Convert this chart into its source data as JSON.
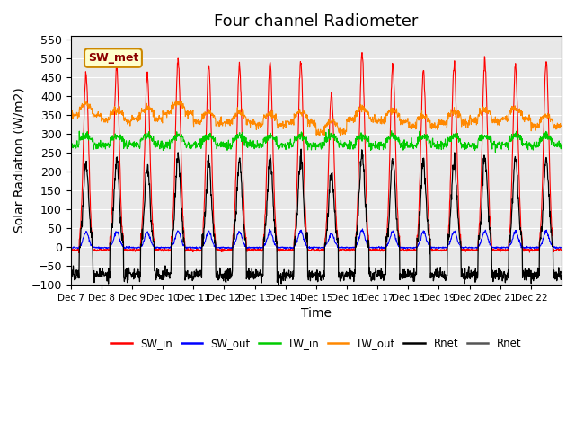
{
  "title": "Four channel Radiometer",
  "ylabel": "Solar Radiation (W/m2)",
  "xlabel": "Time",
  "ylim": [
    -100,
    560
  ],
  "yticks": [
    -100,
    -50,
    0,
    50,
    100,
    150,
    200,
    250,
    300,
    350,
    400,
    450,
    500,
    550
  ],
  "x_labels": [
    "Dec 7",
    "Dec 8",
    "Dec 9",
    "Dec 10",
    "Dec 11",
    "Dec 12",
    "Dec 13",
    "Dec 14",
    "Dec 15",
    "Dec 16",
    "Dec 17",
    "Dec 18",
    "Dec 19",
    "Dec 20",
    "Dec 21",
    "Dec 22"
  ],
  "n_days": 16,
  "legend_labels": [
    "SW_in",
    "SW_out",
    "LW_in",
    "LW_out",
    "Rnet",
    "Rnet"
  ],
  "legend_colors": [
    "#ff0000",
    "#0000ff",
    "#00cc00",
    "#ff8800",
    "#000000",
    "#555555"
  ],
  "sw_met_label": "SW_met",
  "background_color": "#e8e8e8",
  "grid_color": "#ffffff",
  "title_fontsize": 13,
  "axis_fontsize": 10,
  "day_peaks_sw": [
    460,
    480,
    455,
    495,
    480,
    480,
    490,
    490,
    410,
    515,
    485,
    465,
    480,
    495,
    480,
    490
  ],
  "day_peaks_lw_out": [
    375,
    360,
    365,
    380,
    355,
    355,
    350,
    355,
    330,
    365,
    360,
    345,
    355,
    360,
    365,
    345
  ]
}
